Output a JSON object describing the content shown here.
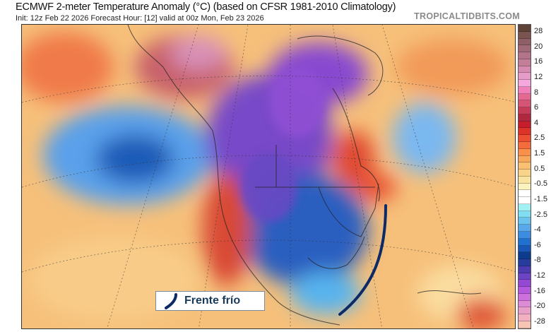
{
  "header": {
    "title": "ECMWF 2-meter Temperature Anomaly (°C) (based on CFSR 1981-2010 Climatology)",
    "subtitle": "Init: 12z Feb 22 2026   Forecast Hour: [12]   valid at 00z Mon, Feb 23 2026",
    "brand": "TROPICALTIDBITS.COM"
  },
  "colorbar": {
    "labels": [
      "28",
      "20",
      "16",
      "12",
      "8",
      "6",
      "4",
      "2.5",
      "1.5",
      "0.5",
      "-0.5",
      "-1.5",
      "-2.5",
      "-4",
      "-6",
      "-8",
      "-12",
      "-16",
      "-20",
      "-28"
    ],
    "colors": [
      "#5e4336",
      "#7a5550",
      "#8e5f66",
      "#a06a78",
      "#b27488",
      "#c47f98",
      "#d68cb0",
      "#e69cc8",
      "#f4a8dc",
      "#f080b8",
      "#e46890",
      "#d65474",
      "#c43c58",
      "#b02840",
      "#c81e2c",
      "#dc3228",
      "#ec5030",
      "#f46c3c",
      "#f8904c",
      "#f8a85c",
      "#f8c070",
      "#f8d488",
      "#f8e4a0",
      "#fcf2c0",
      "#ffffff",
      "#ffffff",
      "#a0f0f4",
      "#80def0",
      "#6cc4ee",
      "#5aa8ec",
      "#3c8ce0",
      "#2070d0",
      "#1858b4",
      "#0e3c8c",
      "#283c9c",
      "#4c3cb0",
      "#6c44c4",
      "#9448d4",
      "#b458dc",
      "#cc70dc",
      "#dc8cd4",
      "#e8a0c8",
      "#f0b0c0",
      "#f8c4b4"
    ]
  },
  "legend": {
    "label": "Frente frío",
    "front_color": "#0d2a66"
  }
}
